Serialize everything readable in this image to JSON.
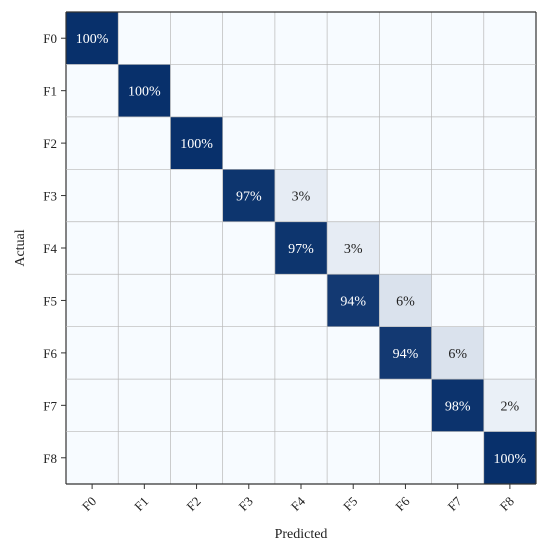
{
  "chart_data": {
    "type": "heatmap",
    "title": "",
    "xlabel": "Predicted",
    "ylabel": "Actual",
    "x_categories": [
      "F0",
      "F1",
      "F2",
      "F3",
      "F4",
      "F5",
      "F6",
      "F7",
      "F8"
    ],
    "y_categories": [
      "F0",
      "F1",
      "F2",
      "F3",
      "F4",
      "F5",
      "F6",
      "F7",
      "F8"
    ],
    "values": [
      [
        100,
        0,
        0,
        0,
        0,
        0,
        0,
        0,
        0
      ],
      [
        0,
        100,
        0,
        0,
        0,
        0,
        0,
        0,
        0
      ],
      [
        0,
        0,
        100,
        0,
        0,
        0,
        0,
        0,
        0
      ],
      [
        0,
        0,
        0,
        97,
        3,
        0,
        0,
        0,
        0
      ],
      [
        0,
        0,
        0,
        0,
        97,
        3,
        0,
        0,
        0
      ],
      [
        0,
        0,
        0,
        0,
        0,
        94,
        6,
        0,
        0
      ],
      [
        0,
        0,
        0,
        0,
        0,
        0,
        94,
        6,
        0
      ],
      [
        0,
        0,
        0,
        0,
        0,
        0,
        0,
        98,
        2
      ],
      [
        0,
        0,
        0,
        0,
        0,
        0,
        0,
        0,
        100
      ]
    ],
    "value_suffix": "%",
    "colormap": {
      "low": "#f7fbff",
      "high": "#08306b"
    },
    "grid": true,
    "legend": "none"
  }
}
